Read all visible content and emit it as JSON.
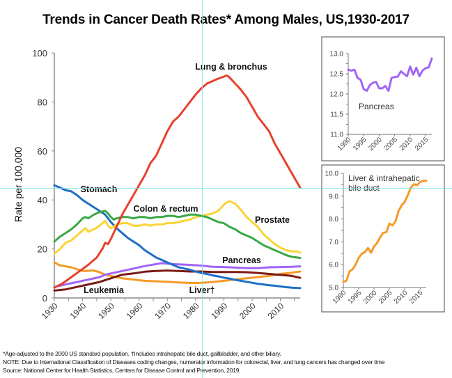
{
  "title": "Trends in Cancer Death Rates* Among Males, US,1930-2017",
  "footnotes": [
    "*Age-adjusted to the 2000 US standard population. †Includes intrahepatic bile duct, gallbladder, and other biliary.",
    "NOTE:  Due to International Classification of Diseases coding changes, numerator information for colorectal, liver, and lung cancers has changed over time",
    "Source:  National Center for Health Statistics, Centers for Disease Control and Prevention, 2019."
  ],
  "chart_data": [
    {
      "type": "line",
      "title": "Trends in Cancer Death Rates* Among Males, US,1930-2017",
      "xlabel": "",
      "ylabel": "Rate per 100,000",
      "xlim": [
        1930,
        2017
      ],
      "ylim": [
        0,
        100
      ],
      "yticks": [
        0,
        20,
        40,
        60,
        80,
        100
      ],
      "xticks": [
        1930,
        1940,
        1950,
        1960,
        1970,
        1980,
        1990,
        2000,
        2010
      ],
      "grid": false,
      "legend": "inline labels",
      "series": [
        {
          "name": "Lung & bronchus",
          "label": "Lung & bronchus",
          "color": "#e8412c",
          "x": [
            1930,
            1933,
            1936,
            1939,
            1942,
            1945,
            1947,
            1948,
            1949,
            1950,
            1952,
            1954,
            1956,
            1958,
            1960,
            1962,
            1964,
            1966,
            1968,
            1970,
            1972,
            1974,
            1976,
            1978,
            1980,
            1982,
            1984,
            1986,
            1988,
            1990,
            1991,
            1992,
            1994,
            1996,
            1998,
            2000,
            2002,
            2004,
            2006,
            2008,
            2010,
            2012,
            2014,
            2016,
            2017
          ],
          "y": [
            4.2,
            6,
            8.5,
            11,
            13.5,
            16.5,
            20,
            22.5,
            22,
            24,
            29,
            34,
            38,
            42,
            46,
            50,
            55,
            58,
            63,
            68,
            72,
            74,
            77,
            80,
            83,
            85.5,
            87.5,
            88.5,
            89.5,
            90.3,
            90.8,
            90,
            87.5,
            85,
            82,
            78,
            74,
            71,
            68,
            63,
            59,
            55,
            51,
            47,
            45
          ]
        },
        {
          "name": "Stomach",
          "label": "Stomach",
          "color": "#1f6ec7",
          "x": [
            1930,
            1932,
            1934,
            1936,
            1938,
            1940,
            1942,
            1944,
            1946,
            1948,
            1950,
            1952,
            1954,
            1956,
            1958,
            1960,
            1962,
            1964,
            1966,
            1968,
            1970,
            1972,
            1974,
            1976,
            1978,
            1980,
            1982,
            1984,
            1986,
            1988,
            1990,
            1992,
            1994,
            1996,
            1998,
            2000,
            2002,
            2004,
            2006,
            2008,
            2010,
            2012,
            2014,
            2016,
            2017
          ],
          "y": [
            46,
            45,
            44,
            43.5,
            42,
            40,
            38.5,
            37,
            35.5,
            34,
            31,
            28.5,
            26.5,
            24.5,
            23,
            21.5,
            19.5,
            18,
            16.5,
            15.5,
            14.5,
            13.5,
            12.5,
            12,
            11.5,
            10.8,
            10.2,
            9.8,
            9.2,
            8.8,
            8.3,
            7.9,
            7.4,
            7,
            6.6,
            6.2,
            5.8,
            5.5,
            5.2,
            5,
            4.7,
            4.4,
            4.2,
            4.1,
            4
          ]
        },
        {
          "name": "Colon & rectum",
          "label": "Colon & rectum",
          "color": "#3aa845",
          "x": [
            1930,
            1932,
            1934,
            1936,
            1938,
            1940,
            1941,
            1942,
            1944,
            1946,
            1948,
            1949,
            1950,
            1951,
            1952,
            1954,
            1956,
            1958,
            1960,
            1962,
            1964,
            1966,
            1968,
            1970,
            1972,
            1974,
            1976,
            1978,
            1980,
            1982,
            1984,
            1986,
            1988,
            1990,
            1992,
            1994,
            1996,
            1998,
            2000,
            2002,
            2004,
            2006,
            2008,
            2010,
            2012,
            2014,
            2016,
            2017
          ],
          "y": [
            23,
            25,
            26.5,
            28,
            30,
            32.5,
            33,
            32.5,
            34,
            35,
            35.5,
            34.5,
            33,
            32,
            32.5,
            33,
            33,
            32.5,
            33,
            33,
            32.5,
            33,
            33,
            33.5,
            33.5,
            33,
            33.5,
            34,
            34,
            33.5,
            33,
            32,
            31,
            30.5,
            29,
            28,
            26.5,
            25.5,
            24.5,
            23,
            21.5,
            20.5,
            19.5,
            18.5,
            17.5,
            16.8,
            16.5,
            16.3
          ]
        },
        {
          "name": "Prostate",
          "label": "Prostate",
          "color": "#fad434",
          "x": [
            1930,
            1932,
            1934,
            1936,
            1938,
            1940,
            1941,
            1942,
            1944,
            1946,
            1948,
            1949,
            1950,
            1951,
            1952,
            1954,
            1956,
            1958,
            1960,
            1962,
            1964,
            1966,
            1968,
            1970,
            1972,
            1974,
            1976,
            1978,
            1980,
            1982,
            1984,
            1986,
            1988,
            1990,
            1991,
            1992,
            1993,
            1994,
            1996,
            1998,
            2000,
            2002,
            2004,
            2006,
            2008,
            2010,
            2012,
            2014,
            2016,
            2017
          ],
          "y": [
            18,
            20,
            22.5,
            23.5,
            25.5,
            27.5,
            28.5,
            27,
            28,
            29.5,
            31.5,
            29.5,
            28.5,
            29,
            30,
            30.5,
            30.5,
            29.5,
            29.5,
            30,
            29.5,
            30,
            30,
            30.5,
            30.5,
            31,
            31.5,
            32,
            33,
            33.5,
            34,
            34.5,
            35.5,
            38,
            39,
            39.5,
            39,
            38.5,
            36,
            33,
            31,
            29,
            26,
            24,
            22,
            20.5,
            19.5,
            19,
            19,
            18.5
          ]
        },
        {
          "name": "Pancreas",
          "label": "Pancreas",
          "color": "#a066f5",
          "x": [
            1930,
            1934,
            1938,
            1942,
            1946,
            1948,
            1950,
            1954,
            1958,
            1962,
            1966,
            1968,
            1970,
            1974,
            1978,
            1982,
            1986,
            1990,
            1994,
            1998,
            2002,
            2006,
            2010,
            2014,
            2017
          ],
          "y": [
            4.5,
            5.5,
            6.5,
            7.5,
            8.5,
            9.5,
            10,
            11,
            12,
            13,
            13.8,
            14.2,
            14,
            13.7,
            13.5,
            13.2,
            12.7,
            12.6,
            12.4,
            12.2,
            12.2,
            12.5,
            12.6,
            12.7,
            12.9
          ]
        },
        {
          "name": "Leukemia",
          "label": "Leukemia",
          "color": "#7b1a12",
          "x": [
            1930,
            1934,
            1938,
            1942,
            1946,
            1950,
            1954,
            1958,
            1962,
            1966,
            1970,
            1974,
            1978,
            1982,
            1986,
            1990,
            1994,
            1998,
            2002,
            2006,
            2010,
            2014,
            2017
          ],
          "y": [
            3,
            3.5,
            4.5,
            5.5,
            6.5,
            8,
            9.5,
            10,
            10.7,
            11,
            11.2,
            11,
            10.8,
            10.8,
            10.6,
            10.6,
            10.6,
            10.5,
            10.2,
            9.8,
            9.4,
            9,
            8.2
          ]
        },
        {
          "name": "Liver†",
          "label": "Liver†",
          "color": "#f59a27",
          "x": [
            1930,
            1932,
            1936,
            1940,
            1944,
            1946,
            1948,
            1950,
            1954,
            1958,
            1962,
            1966,
            1970,
            1974,
            1978,
            1980,
            1982,
            1986,
            1990,
            1994,
            1998,
            2002,
            2006,
            2010,
            2014,
            2017
          ],
          "y": [
            14.5,
            13.3,
            12.5,
            11,
            11.2,
            10.5,
            9.5,
            9,
            8,
            7.5,
            7,
            6.8,
            6.6,
            6.3,
            6.1,
            6.1,
            6.2,
            6.5,
            7,
            7.5,
            8,
            8.5,
            9,
            9.8,
            10.3,
            10.8
          ]
        }
      ],
      "annotations": []
    },
    {
      "type": "line",
      "title": "",
      "label": "Pancreas",
      "xlim": [
        1990,
        2017
      ],
      "ylim": [
        11.0,
        13.0
      ],
      "yticks": [
        "11.0",
        "11.5",
        "12.0",
        "12.5",
        "13.0"
      ],
      "xticks": [
        "1990",
        "1995",
        "2000",
        "2005",
        "2010",
        "2015"
      ],
      "series": [
        {
          "name": "Pancreas",
          "color": "#a066f5",
          "x": [
            1990,
            1991,
            1992,
            1993,
            1994,
            1995,
            1996,
            1997,
            1998,
            1999,
            2000,
            2001,
            2002,
            2003,
            2004,
            2005,
            2006,
            2007,
            2008,
            2009,
            2010,
            2011,
            2012,
            2013,
            2014,
            2015,
            2016,
            2017
          ],
          "y": [
            12.6,
            12.58,
            12.6,
            12.4,
            12.35,
            12.12,
            12.08,
            12.22,
            12.28,
            12.3,
            12.14,
            12.14,
            12.2,
            12.08,
            12.4,
            12.42,
            12.43,
            12.56,
            12.5,
            12.44,
            12.68,
            12.48,
            12.65,
            12.44,
            12.58,
            12.64,
            12.66,
            12.88
          ]
        }
      ]
    },
    {
      "type": "line",
      "title": "",
      "label": "Liver & intrahepatic bile duct",
      "label_lines": [
        "Liver & intrahepatic",
        "bile duct"
      ],
      "xlim": [
        1990,
        2017
      ],
      "ylim": [
        5.0,
        10.0
      ],
      "yticks": [
        "5.0",
        "6.0",
        "7.0",
        "8.0",
        "9.0",
        "10.0"
      ],
      "xticks": [
        "1990",
        "1995",
        "2000",
        "2005",
        "2010",
        "2015"
      ],
      "series": [
        {
          "name": "Liver & intrahepatic bile duct",
          "color": "#f59a27",
          "x": [
            1990,
            1991,
            1992,
            1993,
            1994,
            1995,
            1996,
            1997,
            1998,
            1999,
            2000,
            2001,
            2002,
            2003,
            2004,
            2005,
            2006,
            2007,
            2008,
            2009,
            2010,
            2011,
            2012,
            2013,
            2014,
            2015,
            2016,
            2017
          ],
          "y": [
            5.25,
            5.3,
            5.7,
            5.8,
            6.0,
            6.3,
            6.48,
            6.55,
            6.73,
            6.52,
            6.8,
            6.95,
            7.2,
            7.4,
            7.42,
            7.8,
            7.72,
            7.9,
            8.35,
            8.6,
            8.75,
            9.05,
            9.38,
            9.52,
            9.48,
            9.62,
            9.67,
            9.67
          ]
        }
      ]
    }
  ]
}
